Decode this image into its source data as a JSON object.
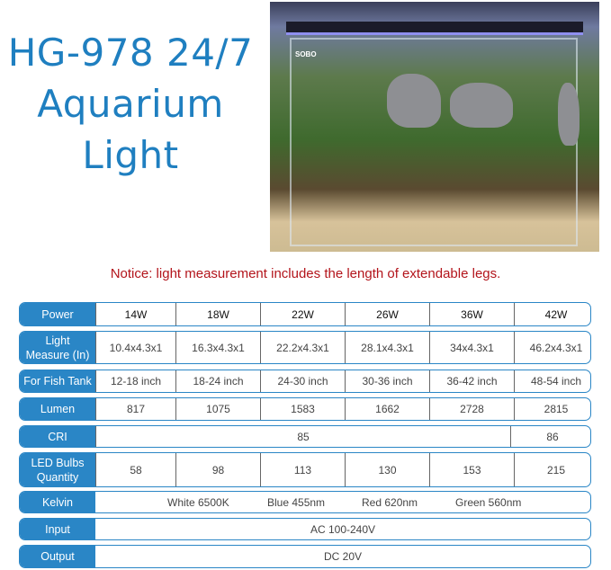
{
  "title": {
    "line1": "HG-978 24/7",
    "line2": "Aquarium",
    "line3": "Light"
  },
  "photo": {
    "brand": "SOBO"
  },
  "notice": "Notice: light measurement includes the length of extendable legs.",
  "colors": {
    "accent": "#2a86c6",
    "title": "#1f7fc0",
    "notice": "#b3141b"
  },
  "table": {
    "power": {
      "label": "Power",
      "values": [
        "14W",
        "18W",
        "22W",
        "26W",
        "36W",
        "42W"
      ]
    },
    "measure": {
      "label1": "Light",
      "label2": "Measure (In)",
      "values": [
        "10.4x4.3x1",
        "16.3x4.3x1",
        "22.2x4.3x1",
        "28.1x4.3x1",
        "34x4.3x1",
        "46.2x4.3x1"
      ]
    },
    "tank": {
      "label": "For Fish Tank",
      "values": [
        "12-18 inch",
        "18-24 inch",
        "24-30 inch",
        "30-36 inch",
        "36-42 inch",
        "48-54 inch"
      ]
    },
    "lumen": {
      "label": "Lumen",
      "values": [
        "817",
        "1075",
        "1583",
        "1662",
        "2728",
        "2815"
      ]
    },
    "cri": {
      "label": "CRI",
      "values": [
        "85",
        "86"
      ]
    },
    "bulbs": {
      "label1": "LED Bulbs",
      "label2": "Quantity",
      "values": [
        "58",
        "98",
        "113",
        "130",
        "153",
        "215"
      ]
    },
    "kelvin": {
      "label": "Kelvin",
      "values": [
        "White 6500K",
        "Blue 455nm",
        "Red 620nm",
        "Green 560nm"
      ]
    },
    "input": {
      "label": "Input",
      "value": "AC 100-240V"
    },
    "output": {
      "label": "Output",
      "value": "DC 20V"
    }
  }
}
